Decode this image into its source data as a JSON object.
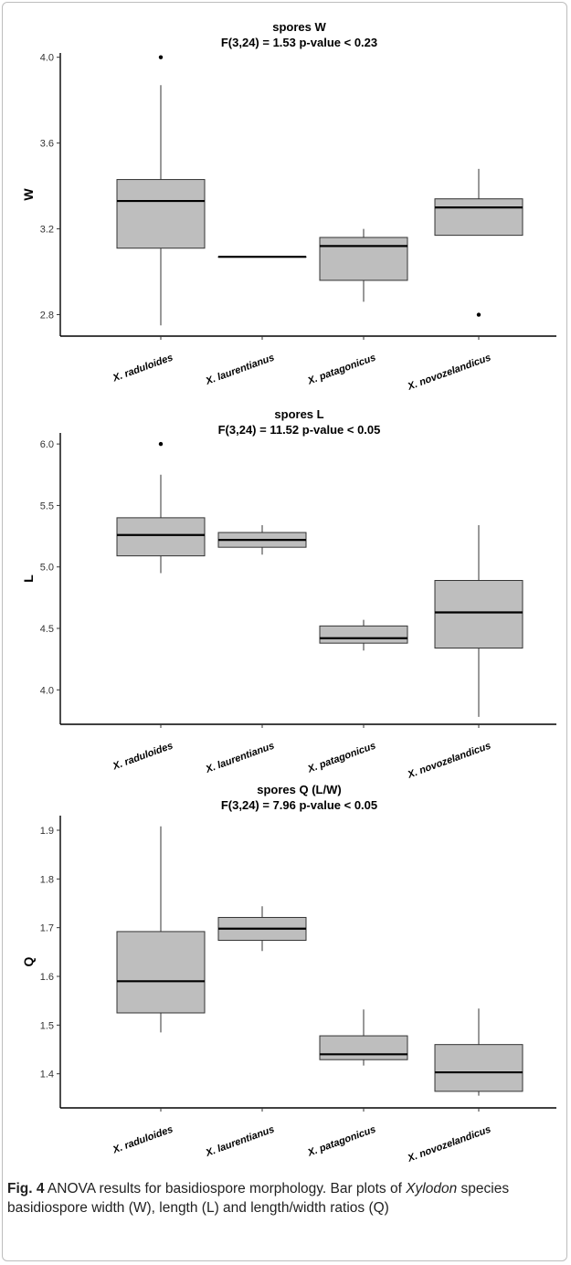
{
  "caption": {
    "label": "Fig. 4",
    "text_before": " ANOVA results for basidiospore morphology. Bar plots of ",
    "genus": "Xylodon",
    "text_after": " species basidiospore width (W), length (L) and length/width ratios (Q)"
  },
  "chart_data": [
    {
      "type": "box",
      "title": "spores W",
      "subtitle": "F(3,24) = 1.53  p-value < 0.23",
      "ylabel": "W",
      "xlabel": "",
      "categories": [
        "X. raduloides",
        "X. laurentianus",
        "X. patagonicus",
        "X. novozelandicus"
      ],
      "ylim": [
        2.7,
        4.02
      ],
      "yticks": [
        2.8,
        3.2,
        3.6,
        4.0
      ],
      "ytick_labels": [
        "2.8",
        "3.2",
        "3.6",
        "4.0"
      ],
      "grid": false,
      "boxes": [
        {
          "min": 2.75,
          "q1": 3.11,
          "median": 3.33,
          "q3": 3.43,
          "max": 3.87,
          "outliers": [
            4.0
          ]
        },
        {
          "min": 3.07,
          "q1": 3.07,
          "median": 3.07,
          "q3": 3.07,
          "max": 3.07,
          "outliers": []
        },
        {
          "min": 2.86,
          "q1": 2.96,
          "median": 3.12,
          "q3": 3.16,
          "max": 3.2,
          "outliers": []
        },
        {
          "min": 3.17,
          "q1": 3.17,
          "median": 3.3,
          "q3": 3.34,
          "max": 3.48,
          "outliers": [
            2.8
          ]
        }
      ]
    },
    {
      "type": "box",
      "title": "spores L",
      "subtitle": "F(3,24) = 11.52  p-value < 0.05",
      "ylabel": "L",
      "xlabel": "",
      "categories": [
        "X. raduloides",
        "X. laurentianus",
        "X. patagonicus",
        "X. novozelandicus"
      ],
      "ylim": [
        3.72,
        6.09
      ],
      "yticks": [
        4.0,
        4.5,
        5.0,
        5.5,
        6.0
      ],
      "ytick_labels": [
        "4.0",
        "4.5",
        "5.0",
        "5.5",
        "6.0"
      ],
      "grid": false,
      "boxes": [
        {
          "min": 4.95,
          "q1": 5.09,
          "median": 5.26,
          "q3": 5.4,
          "max": 5.75,
          "outliers": [
            6.0
          ]
        },
        {
          "min": 5.1,
          "q1": 5.16,
          "median": 5.22,
          "q3": 5.28,
          "max": 5.34,
          "outliers": []
        },
        {
          "min": 4.32,
          "q1": 4.38,
          "median": 4.42,
          "q3": 4.52,
          "max": 4.57,
          "outliers": []
        },
        {
          "min": 3.78,
          "q1": 4.34,
          "median": 4.63,
          "q3": 4.89,
          "max": 5.34,
          "outliers": []
        }
      ]
    },
    {
      "type": "box",
      "title": "spores Q (L/W)",
      "subtitle": "F(3,24) = 7.96  p-value < 0.05",
      "ylabel": "Q",
      "xlabel": "",
      "categories": [
        "X. raduloides",
        "X. laurentianus",
        "X. patagonicus",
        "X. novozelandicus"
      ],
      "ylim": [
        1.33,
        1.93
      ],
      "yticks": [
        1.4,
        1.5,
        1.6,
        1.7,
        1.8,
        1.9
      ],
      "ytick_labels": [
        "1.4",
        "1.5",
        "1.6",
        "1.7",
        "1.8",
        "1.9"
      ],
      "grid": false,
      "boxes": [
        {
          "min": 1.485,
          "q1": 1.525,
          "median": 1.59,
          "q3": 1.692,
          "max": 1.908,
          "outliers": []
        },
        {
          "min": 1.652,
          "q1": 1.674,
          "median": 1.698,
          "q3": 1.721,
          "max": 1.744,
          "outliers": []
        },
        {
          "min": 1.417,
          "q1": 1.429,
          "median": 1.44,
          "q3": 1.478,
          "max": 1.532,
          "outliers": []
        },
        {
          "min": 1.355,
          "q1": 1.364,
          "median": 1.403,
          "q3": 1.46,
          "max": 1.534,
          "outliers": []
        }
      ]
    }
  ],
  "colors": {
    "box_fill": "#bebebe",
    "box_stroke": "#333333",
    "median": "#000000",
    "axis": "#000000",
    "frame": "#bdbdbd"
  }
}
